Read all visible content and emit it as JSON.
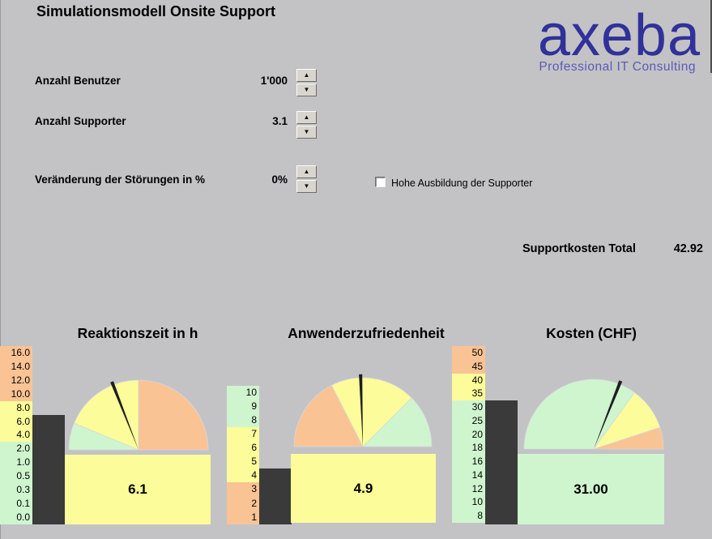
{
  "window": {
    "title": "Simulationsmodell Onsite Support"
  },
  "logo": {
    "brand": "axeba",
    "tagline": "Professional IT Consulting"
  },
  "inputs": [
    {
      "label": "Anzahl Benutzer",
      "value": "1'000"
    },
    {
      "label": "Anzahl Supporter",
      "value": "3.1"
    },
    {
      "label": "Veränderung der Störungen in %",
      "value": "0%"
    }
  ],
  "checkbox": {
    "label": "Hohe Ausbildung der Supporter",
    "checked": false
  },
  "summary": {
    "label": "Supportkosten Total",
    "value": "42.92"
  },
  "icons": {
    "spinner_up": "▲",
    "spinner_down": "▼"
  },
  "colors": {
    "background": "#C3C3C5",
    "brand_blue": "#31319A",
    "tagline_blue": "#5A5ABB",
    "zone_green": "#CFF5CF",
    "zone_yellow": "#FCFC9A",
    "zone_salmon": "#FAC394",
    "bar_dark": "#3A3A3A",
    "needle": "#1E1E1E"
  },
  "chart_data": [
    {
      "type": "gauge",
      "title": "Reaktionszeit in h",
      "value": 6.1,
      "value_label": "6.1",
      "max": 16,
      "zones": [
        {
          "from": 0,
          "to": 2,
          "color": "green"
        },
        {
          "from": 2,
          "to": 8,
          "color": "yellow"
        },
        {
          "from": 8,
          "to": 16,
          "color": "salmon"
        }
      ],
      "scale_labels": [
        "16.0",
        "14.0",
        "12.0",
        "10.0",
        "8.0",
        "6.0",
        "4.0",
        "2.0",
        "1.0",
        "0.5",
        "0.3",
        "0.1",
        "0.0"
      ],
      "scale_zone_colors": [
        "salmon",
        "salmon",
        "salmon",
        "salmon",
        "yellow",
        "yellow",
        "yellow",
        "green",
        "green",
        "green",
        "green",
        "green",
        "green"
      ],
      "value_box_color": "yellow"
    },
    {
      "type": "gauge",
      "title": "Anwenderzufriedenheit",
      "value": 4.9,
      "value_label": "4.9",
      "max": 10,
      "zones": [
        {
          "from": 0,
          "to": 3.5,
          "color": "salmon"
        },
        {
          "from": 3.5,
          "to": 7.5,
          "color": "yellow"
        },
        {
          "from": 7.5,
          "to": 10,
          "color": "green"
        }
      ],
      "scale_labels": [
        "10",
        "9",
        "8",
        "7",
        "6",
        "5",
        "4",
        "3",
        "2",
        "1"
      ],
      "scale_zone_colors": [
        "green",
        "green",
        "green",
        "yellow",
        "yellow",
        "yellow",
        "yellow",
        "salmon",
        "salmon",
        "salmon"
      ],
      "value_box_color": "yellow"
    },
    {
      "type": "gauge",
      "title": "Kosten (CHF)",
      "value": 31,
      "value_label": "31.00",
      "max": 50,
      "zones": [
        {
          "from": 0,
          "to": 35,
          "color": "green"
        },
        {
          "from": 35,
          "to": 45,
          "color": "yellow"
        },
        {
          "from": 45,
          "to": 50,
          "color": "salmon"
        }
      ],
      "scale_labels": [
        "50",
        "45",
        "40",
        "35",
        "30",
        "25",
        "20",
        "18",
        "16",
        "14",
        "12",
        "10",
        "8"
      ],
      "scale_zone_colors": [
        "salmon",
        "salmon",
        "yellow",
        "yellow",
        "green",
        "green",
        "green",
        "green",
        "green",
        "green",
        "green",
        "green",
        "green"
      ],
      "value_box_color": "green"
    }
  ]
}
